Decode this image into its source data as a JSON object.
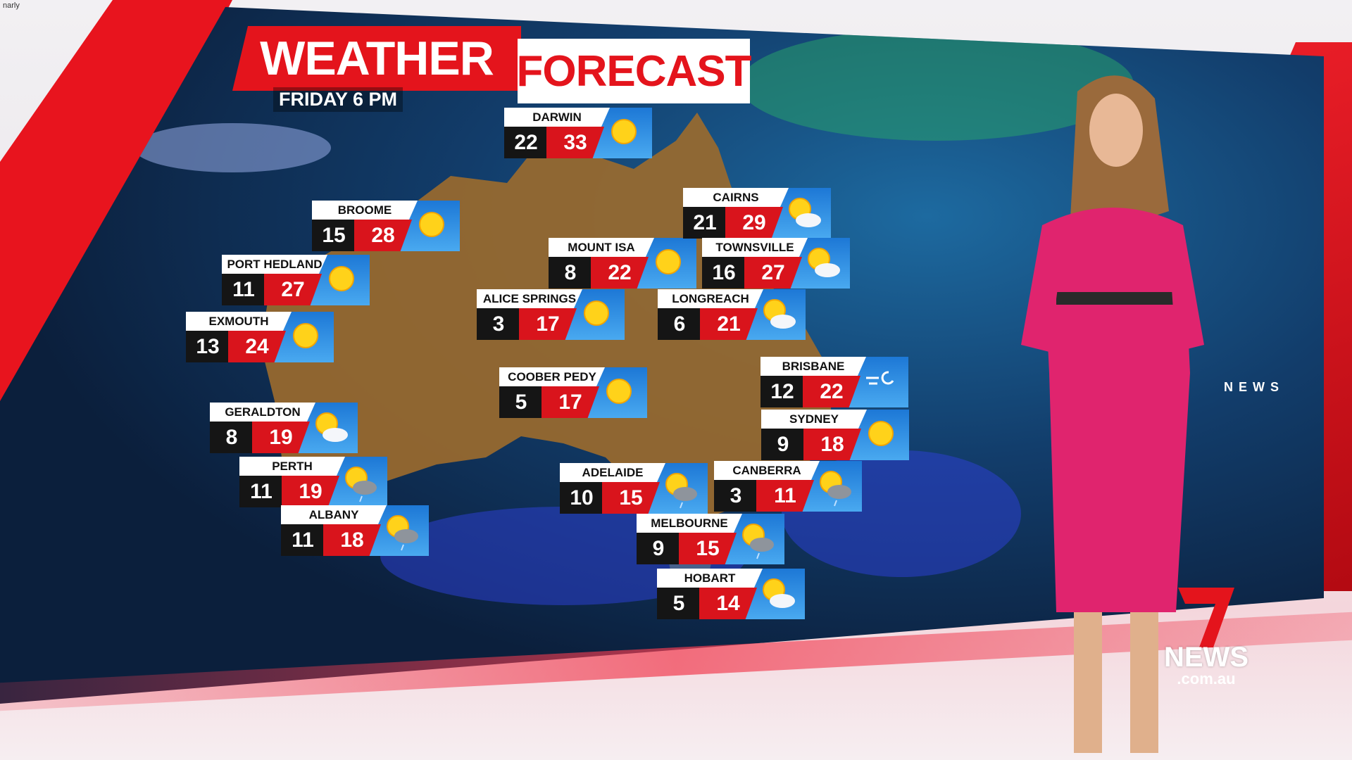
{
  "watermark": "narly",
  "title": {
    "left": "WEATHER",
    "right": "FORECAST",
    "subtitle": "FRIDAY 6 PM"
  },
  "colors": {
    "brand_red": "#e4141c",
    "min_bg": "#151515",
    "icon_blue": "#2a8be0",
    "dress": "#e0246e"
  },
  "cities": [
    {
      "name": "DARWIN",
      "min": "22",
      "max": "33",
      "icon": "sun"
    },
    {
      "name": "BROOME",
      "min": "15",
      "max": "28",
      "icon": "sun"
    },
    {
      "name": "PORT HEDLAND",
      "min": "11",
      "max": "27",
      "icon": "sun"
    },
    {
      "name": "EXMOUTH",
      "min": "13",
      "max": "24",
      "icon": "sun"
    },
    {
      "name": "GERALDTON",
      "min": "8",
      "max": "19",
      "icon": "partly-cloudy"
    },
    {
      "name": "PERTH",
      "min": "11",
      "max": "19",
      "icon": "shower"
    },
    {
      "name": "ALBANY",
      "min": "11",
      "max": "18",
      "icon": "shower"
    },
    {
      "name": "MOUNT ISA",
      "min": "8",
      "max": "22",
      "icon": "sun"
    },
    {
      "name": "ALICE SPRINGS",
      "min": "3",
      "max": "17",
      "icon": "sun"
    },
    {
      "name": "COOBER PEDY",
      "min": "5",
      "max": "17",
      "icon": "sun"
    },
    {
      "name": "ADELAIDE",
      "min": "10",
      "max": "15",
      "icon": "shower"
    },
    {
      "name": "MELBOURNE",
      "min": "9",
      "max": "15",
      "icon": "shower"
    },
    {
      "name": "HOBART",
      "min": "5",
      "max": "14",
      "icon": "partly-cloudy"
    },
    {
      "name": "CAIRNS",
      "min": "21",
      "max": "29",
      "icon": "partly-cloudy"
    },
    {
      "name": "TOWNSVILLE",
      "min": "16",
      "max": "27",
      "icon": "partly-cloudy"
    },
    {
      "name": "LONGREACH",
      "min": "6",
      "max": "21",
      "icon": "partly-cloudy"
    },
    {
      "name": "BRISBANE",
      "min": "12",
      "max": "22",
      "icon": "wind"
    },
    {
      "name": "SYDNEY",
      "min": "9",
      "max": "18",
      "icon": "sun"
    },
    {
      "name": "CANBERRA",
      "min": "3",
      "max": "11",
      "icon": "shower"
    }
  ],
  "branding": {
    "side": "NEWS",
    "logo_word": "NEWS",
    "logo_domain": ".com.au"
  }
}
